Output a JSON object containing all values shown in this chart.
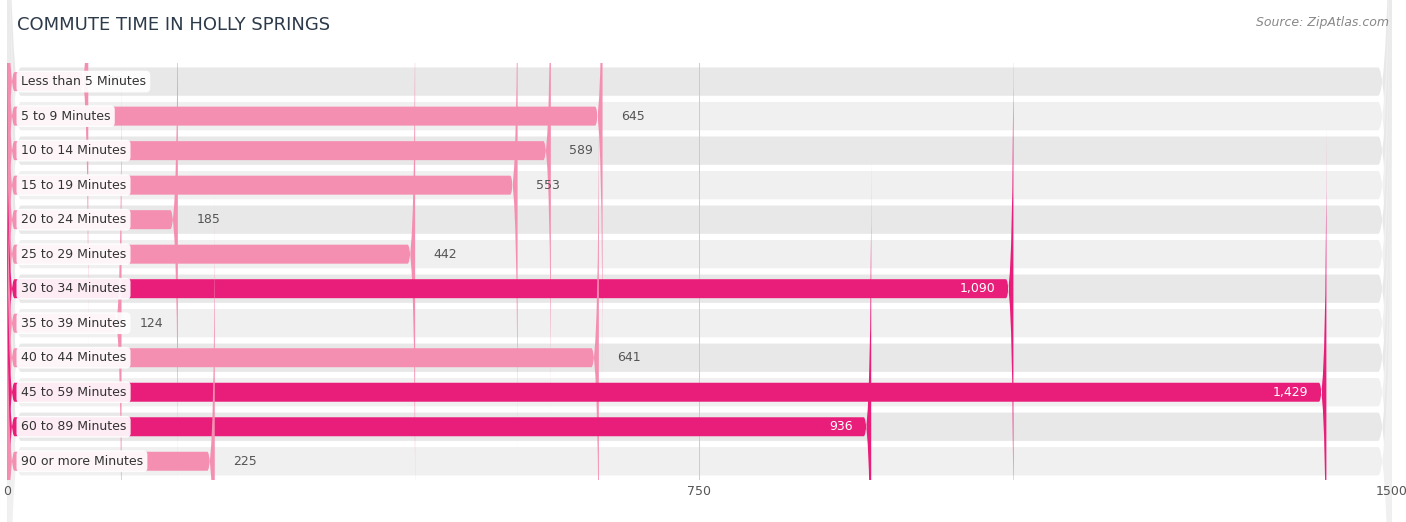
{
  "title": "COMMUTE TIME IN HOLLY SPRINGS",
  "source": "Source: ZipAtlas.com",
  "categories": [
    "Less than 5 Minutes",
    "5 to 9 Minutes",
    "10 to 14 Minutes",
    "15 to 19 Minutes",
    "20 to 24 Minutes",
    "25 to 29 Minutes",
    "30 to 34 Minutes",
    "35 to 39 Minutes",
    "40 to 44 Minutes",
    "45 to 59 Minutes",
    "60 to 89 Minutes",
    "90 or more Minutes"
  ],
  "values": [
    88,
    645,
    589,
    553,
    185,
    442,
    1090,
    124,
    641,
    1429,
    936,
    225
  ],
  "bar_color_normal": "#f48fb1",
  "bar_color_highlight": "#e91e7a",
  "highlight_indices": [
    6,
    9,
    10
  ],
  "xlim": [
    0,
    1500
  ],
  "xticks": [
    0,
    750,
    1500
  ],
  "background_color": "#ffffff",
  "row_bg_color": "#ececec",
  "row_bg_color_alt": "#f5f5f5",
  "title_fontsize": 13,
  "source_fontsize": 9,
  "bar_label_fontsize": 9,
  "category_fontsize": 9,
  "tick_fontsize": 9
}
